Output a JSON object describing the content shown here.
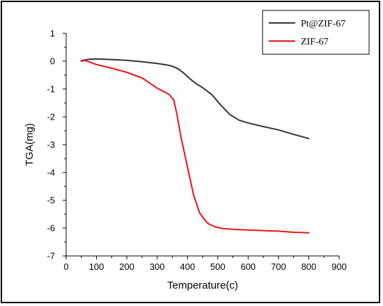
{
  "chart_data": {
    "type": "line",
    "title": "",
    "xlabel": "Temperature(c)",
    "ylabel": "TGA(mg)",
    "xlim": [
      0,
      900
    ],
    "ylim": [
      -7,
      1
    ],
    "xticks": [
      0,
      100,
      200,
      300,
      400,
      500,
      600,
      700,
      800,
      900
    ],
    "yticks": [
      1,
      0,
      -1,
      -2,
      -3,
      -4,
      -5,
      -6,
      -7
    ],
    "grid": false,
    "legend_position": "top-right",
    "series": [
      {
        "name": "Pt@ZIF-67",
        "color": "#333333",
        "x": [
          50,
          75,
          100,
          150,
          200,
          250,
          300,
          330,
          350,
          370,
          390,
          410,
          430,
          450,
          480,
          510,
          540,
          570,
          600,
          650,
          700,
          750,
          800
        ],
        "y": [
          0.02,
          0.07,
          0.08,
          0.06,
          0.03,
          -0.02,
          -0.08,
          -0.13,
          -0.18,
          -0.28,
          -0.45,
          -0.65,
          -0.82,
          -0.95,
          -1.2,
          -1.58,
          -1.92,
          -2.12,
          -2.22,
          -2.35,
          -2.47,
          -2.63,
          -2.78
        ]
      },
      {
        "name": "ZIF-67",
        "color": "#ee1111",
        "x": [
          50,
          62,
          75,
          100,
          150,
          200,
          250,
          280,
          300,
          320,
          340,
          355,
          365,
          380,
          400,
          420,
          440,
          460,
          470,
          490,
          520,
          560,
          600,
          650,
          700,
          750,
          800
        ],
        "y": [
          0.0,
          0.03,
          -0.02,
          -0.12,
          -0.25,
          -0.4,
          -0.6,
          -0.82,
          -0.97,
          -1.08,
          -1.2,
          -1.4,
          -1.9,
          -2.8,
          -3.8,
          -4.8,
          -5.45,
          -5.75,
          -5.85,
          -5.95,
          -6.02,
          -6.05,
          -6.07,
          -6.09,
          -6.11,
          -6.15,
          -6.17
        ]
      }
    ]
  }
}
